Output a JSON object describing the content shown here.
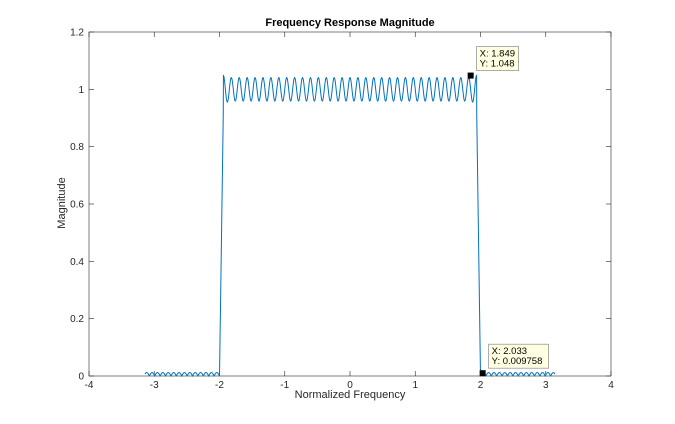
{
  "colors": {
    "line": "#0072bd",
    "axis": "#262626",
    "tooltip_fill": "#ffffe1",
    "tooltip_border": "#8c8c8c",
    "marker": "#000000"
  },
  "chart_data": {
    "type": "line",
    "title": "Frequency Response Magnitude",
    "xlabel": "Normalized Frequency",
    "ylabel": "Magnitude",
    "xlim": [
      -4,
      4
    ],
    "ylim": [
      0,
      1.2
    ],
    "xticks": [
      -4,
      -3,
      -2,
      -1,
      0,
      1,
      2,
      3,
      4
    ],
    "xtick_labels": [
      "-4",
      "-3",
      "-2",
      "-1",
      "0",
      "1",
      "2",
      "3",
      "4"
    ],
    "yticks": [
      0,
      0.2,
      0.4,
      0.6,
      0.8,
      1,
      1.2
    ],
    "ytick_labels": [
      "0",
      "0.2",
      "0.4",
      "0.6",
      "0.8",
      "1",
      "1.2"
    ],
    "grid": false,
    "series": [
      {
        "x_range": [
          -3.1416,
          3.1416
        ],
        "passband": [
          -1.94,
          1.94
        ],
        "passband_ripple": {
          "mean": 1.0,
          "amplitude": 0.048,
          "cycles": 32
        },
        "stopband_ripple": {
          "amplitude": 0.012
        }
      }
    ],
    "datatips": [
      {
        "x": 1.849,
        "y": 1.048,
        "x_label": "X: 1.849",
        "y_label": "Y: 1.048"
      },
      {
        "x": 2.033,
        "y": 0.009758,
        "x_label": "X: 2.033",
        "y_label": "Y: 0.009758"
      }
    ]
  }
}
